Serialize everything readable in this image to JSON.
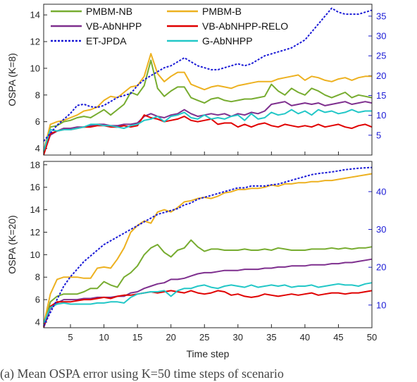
{
  "figure": {
    "caption_fragment": "(a)   Mean OSPA error using K=50 time steps of scenario"
  },
  "legend": [
    {
      "name": "PMBM-NB",
      "color": "#77ac30",
      "dashed": false
    },
    {
      "name": "PMBM-B",
      "color": "#edb120",
      "dashed": false
    },
    {
      "name": "VB-AbNHPP",
      "color": "#7e2f8e",
      "dashed": false
    },
    {
      "name": "VB-AbNHPP-RELO",
      "color": "#e00000",
      "dashed": false
    },
    {
      "name": "ET-JPDA",
      "color": "#1a1ad6",
      "dashed": true
    },
    {
      "name": "G-AbNHPP",
      "color": "#22c7c7",
      "dashed": false
    }
  ],
  "chart_data": [
    {
      "type": "line",
      "panel": "top",
      "xlabel": "",
      "ylabel": "OSPA (K=8)",
      "xlim": [
        1,
        50
      ],
      "ylim": [
        3.5,
        14.8
      ],
      "yticks": [
        4,
        6,
        8,
        10,
        12,
        14
      ],
      "y2lim": [
        0,
        38
      ],
      "y2ticks": [
        5,
        10,
        15,
        20,
        25,
        30,
        35
      ],
      "x": [
        1,
        2,
        3,
        4,
        5,
        6,
        7,
        8,
        9,
        10,
        11,
        12,
        13,
        14,
        15,
        16,
        17,
        18,
        19,
        20,
        21,
        22,
        23,
        24,
        25,
        26,
        27,
        28,
        29,
        30,
        31,
        32,
        33,
        34,
        35,
        36,
        37,
        38,
        39,
        40,
        41,
        42,
        43,
        44,
        45,
        46,
        47,
        48,
        49,
        50
      ],
      "series": [
        {
          "name": "PMBM-NB",
          "axis": "left",
          "values": [
            3.7,
            5.6,
            5.7,
            6.0,
            6.1,
            6.3,
            6.4,
            6.3,
            6.6,
            6.9,
            6.5,
            6.9,
            7.3,
            8.2,
            8.0,
            8.7,
            10.6,
            8.5,
            7.9,
            8.3,
            8.6,
            8.6,
            7.8,
            7.6,
            7.4,
            7.7,
            7.8,
            7.6,
            7.5,
            7.6,
            7.7,
            7.7,
            7.8,
            7.9,
            8.8,
            8.3,
            8.0,
            8.5,
            8.2,
            8.0,
            8.5,
            8.3,
            8.0,
            7.8,
            8.0,
            8.2,
            7.8,
            8.0,
            7.9,
            7.8
          ]
        },
        {
          "name": "PMBM-B",
          "axis": "left",
          "values": [
            3.8,
            5.8,
            6.0,
            6.1,
            6.3,
            6.5,
            6.8,
            6.9,
            7.1,
            7.6,
            7.9,
            7.8,
            8.2,
            8.6,
            8.7,
            9.4,
            11.1,
            9.6,
            9.0,
            9.4,
            9.7,
            9.7,
            8.8,
            8.6,
            8.4,
            8.6,
            8.7,
            8.6,
            8.5,
            8.7,
            8.8,
            8.9,
            9.0,
            9.0,
            9.0,
            9.2,
            9.3,
            9.4,
            9.5,
            9.1,
            9.4,
            9.3,
            9.1,
            9.0,
            9.2,
            9.3,
            9.1,
            9.3,
            9.4,
            9.4
          ]
        },
        {
          "name": "VB-AbNHPP",
          "axis": "left",
          "values": [
            3.6,
            5.0,
            5.3,
            5.5,
            5.5,
            5.6,
            5.6,
            5.7,
            5.8,
            5.8,
            5.7,
            5.7,
            5.8,
            5.8,
            5.9,
            6.4,
            6.6,
            6.4,
            6.3,
            6.5,
            6.6,
            6.9,
            6.6,
            6.4,
            6.5,
            6.6,
            6.5,
            6.6,
            6.4,
            6.6,
            6.5,
            6.7,
            6.6,
            6.8,
            7.3,
            7.4,
            7.5,
            7.2,
            7.3,
            7.4,
            7.3,
            7.4,
            7.2,
            7.3,
            7.4,
            7.5,
            7.3,
            7.4,
            7.5,
            7.4
          ]
        },
        {
          "name": "VB-AbNHPP-RELO",
          "axis": "left",
          "values": [
            3.5,
            5.1,
            5.3,
            5.4,
            5.4,
            5.5,
            5.6,
            5.6,
            5.7,
            5.7,
            5.6,
            5.6,
            5.7,
            5.6,
            5.7,
            6.5,
            6.3,
            6.2,
            6.0,
            6.1,
            6.2,
            6.4,
            6.1,
            6.0,
            6.1,
            6.2,
            5.8,
            5.9,
            5.9,
            5.6,
            5.8,
            5.6,
            5.8,
            5.9,
            5.7,
            5.6,
            5.8,
            5.7,
            5.6,
            5.7,
            5.6,
            5.8,
            5.6,
            5.7,
            5.8,
            5.6,
            5.5,
            5.7,
            5.8,
            5.6
          ]
        },
        {
          "name": "G-AbNHPP",
          "axis": "left",
          "values": [
            3.8,
            5.4,
            5.3,
            5.4,
            5.4,
            5.5,
            5.6,
            5.8,
            5.8,
            5.7,
            5.7,
            5.6,
            5.5,
            5.7,
            5.8,
            6.1,
            6.2,
            6.4,
            6.0,
            6.4,
            6.5,
            6.7,
            6.3,
            6.2,
            6.5,
            6.2,
            6.3,
            6.2,
            6.4,
            6.5,
            6.1,
            6.6,
            6.2,
            6.3,
            6.7,
            6.5,
            6.6,
            6.9,
            6.6,
            6.8,
            6.5,
            6.9,
            6.7,
            6.8,
            6.6,
            6.7,
            6.9,
            6.7,
            6.8,
            6.8
          ]
        },
        {
          "name": "ET-JPDA",
          "axis": "right",
          "values": [
            3.5,
            5.5,
            7.5,
            9.0,
            10.5,
            12.5,
            12.8,
            12.2,
            12.0,
            12.5,
            13.5,
            14.5,
            15.0,
            15.5,
            17.5,
            19.0,
            20.0,
            21.0,
            22.0,
            22.5,
            23.5,
            24.5,
            23.5,
            22.5,
            22.0,
            21.5,
            21.5,
            22.0,
            22.5,
            23.0,
            22.5,
            23.0,
            24.0,
            25.0,
            25.5,
            26.0,
            26.5,
            27.0,
            28.0,
            29.0,
            31.0,
            33.0,
            35.0,
            37.0,
            36.0,
            35.5,
            35.5,
            35.5,
            36.0,
            36.5
          ]
        }
      ]
    },
    {
      "type": "line",
      "panel": "bottom",
      "xlabel": "Time step",
      "ylabel": "OSPA (K=20)",
      "xlim": [
        1,
        50
      ],
      "ylim": [
        3.5,
        18.3
      ],
      "yticks": [
        4,
        6,
        8,
        10,
        12,
        14,
        16,
        18
      ],
      "y2lim": [
        4,
        48
      ],
      "y2ticks": [
        10,
        20,
        30,
        40
      ],
      "xticks": [
        5,
        10,
        15,
        20,
        25,
        30,
        35,
        40,
        45,
        50
      ],
      "x": [
        1,
        2,
        3,
        4,
        5,
        6,
        7,
        8,
        9,
        10,
        11,
        12,
        13,
        14,
        15,
        16,
        17,
        18,
        19,
        20,
        21,
        22,
        23,
        24,
        25,
        26,
        27,
        28,
        29,
        30,
        31,
        32,
        33,
        34,
        35,
        36,
        37,
        38,
        39,
        40,
        41,
        42,
        43,
        44,
        45,
        46,
        47,
        48,
        49,
        50
      ],
      "series": [
        {
          "name": "PMBM-NB",
          "axis": "left",
          "values": [
            3.6,
            5.8,
            6.3,
            6.5,
            6.5,
            6.5,
            6.7,
            7.0,
            7.0,
            7.6,
            7.3,
            7.1,
            8.0,
            8.4,
            9.0,
            10.0,
            10.6,
            10.9,
            10.2,
            9.8,
            10.4,
            10.6,
            11.3,
            10.7,
            10.3,
            10.5,
            10.5,
            10.4,
            10.4,
            10.4,
            10.5,
            10.4,
            10.4,
            10.5,
            10.4,
            10.6,
            10.5,
            10.4,
            10.4,
            10.4,
            10.5,
            10.5,
            10.5,
            10.6,
            10.5,
            10.6,
            10.5,
            10.6,
            10.6,
            10.7
          ]
        },
        {
          "name": "PMBM-B",
          "axis": "left",
          "values": [
            3.8,
            6.5,
            7.8,
            8.0,
            8.0,
            8.0,
            7.9,
            7.9,
            8.8,
            8.9,
            8.8,
            9.6,
            10.6,
            12.0,
            12.6,
            13.0,
            12.8,
            13.8,
            14.0,
            13.8,
            14.2,
            14.7,
            14.8,
            15.0,
            15.1,
            15.0,
            15.2,
            15.5,
            15.6,
            15.8,
            15.8,
            15.9,
            15.9,
            16.0,
            16.2,
            16.1,
            16.3,
            16.3,
            16.4,
            16.4,
            16.5,
            16.5,
            16.6,
            16.6,
            16.7,
            16.8,
            16.9,
            17.0,
            17.1,
            17.2
          ]
        },
        {
          "name": "VB-AbNHPP",
          "axis": "left",
          "values": [
            3.5,
            5.2,
            5.7,
            6.0,
            6.0,
            6.0,
            6.1,
            6.1,
            6.2,
            6.2,
            6.2,
            6.3,
            6.3,
            6.6,
            6.7,
            7.0,
            7.2,
            7.4,
            7.5,
            7.8,
            7.8,
            7.9,
            8.1,
            8.3,
            8.4,
            8.4,
            8.5,
            8.6,
            8.6,
            8.6,
            8.7,
            8.7,
            8.7,
            8.8,
            8.8,
            8.9,
            8.9,
            9.0,
            9.0,
            9.0,
            9.1,
            9.1,
            9.1,
            9.2,
            9.2,
            9.3,
            9.3,
            9.4,
            9.5,
            9.6
          ]
        },
        {
          "name": "VB-AbNHPP-RELO",
          "axis": "left",
          "values": [
            3.6,
            5.4,
            5.8,
            5.8,
            5.8,
            5.9,
            6.0,
            6.0,
            6.1,
            6.2,
            6.1,
            6.3,
            6.4,
            6.4,
            6.5,
            6.6,
            6.7,
            6.6,
            6.7,
            6.8,
            6.7,
            6.6,
            6.8,
            6.6,
            6.5,
            6.6,
            6.8,
            6.7,
            6.4,
            6.5,
            6.3,
            6.2,
            6.3,
            6.5,
            6.4,
            6.3,
            6.4,
            6.5,
            6.4,
            6.5,
            6.6,
            6.4,
            6.5,
            6.6,
            6.6,
            6.5,
            6.6,
            6.6,
            6.7,
            6.8
          ]
        },
        {
          "name": "G-AbNHPP",
          "axis": "left",
          "values": [
            3.9,
            5.3,
            5.6,
            5.7,
            5.6,
            5.6,
            5.6,
            5.6,
            5.7,
            5.7,
            5.8,
            5.8,
            5.7,
            6.2,
            6.5,
            6.6,
            6.7,
            6.7,
            6.8,
            6.3,
            6.8,
            7.0,
            7.0,
            7.2,
            7.3,
            7.1,
            7.0,
            7.2,
            7.3,
            7.2,
            7.1,
            7.3,
            7.1,
            7.2,
            7.3,
            7.2,
            7.3,
            7.1,
            7.2,
            7.2,
            7.3,
            7.1,
            7.2,
            7.3,
            7.4,
            7.3,
            7.3,
            7.2,
            7.4,
            7.5
          ]
        },
        {
          "name": "ET-JPDA",
          "axis": "right",
          "values": [
            4.5,
            8.0,
            11.5,
            15.0,
            17.5,
            19.5,
            21.5,
            23.0,
            24.5,
            26.0,
            27.0,
            28.0,
            29.0,
            30.0,
            31.0,
            32.0,
            33.0,
            34.0,
            34.5,
            35.0,
            35.5,
            36.5,
            37.0,
            38.0,
            38.5,
            39.0,
            39.5,
            40.0,
            40.5,
            41.0,
            41.0,
            41.5,
            41.5,
            41.5,
            41.8,
            42.0,
            42.5,
            43.0,
            43.5,
            44.0,
            44.5,
            44.8,
            45.0,
            45.2,
            45.5,
            45.8,
            46.0,
            46.2,
            46.3,
            46.4
          ]
        }
      ]
    }
  ]
}
